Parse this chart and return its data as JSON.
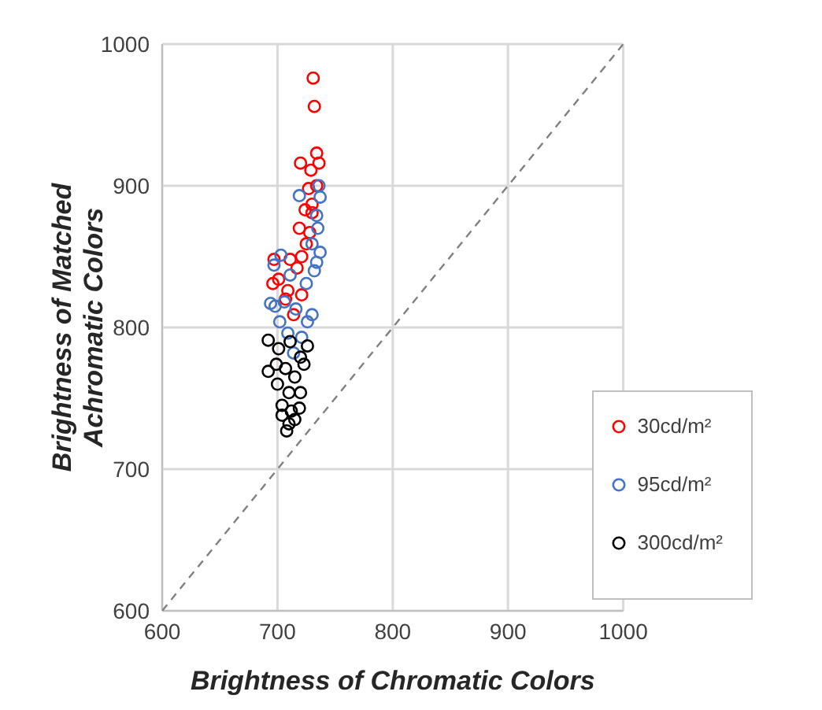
{
  "chart_data": {
    "type": "scatter",
    "xlabel": "Brightness of Chromatic Colors",
    "ylabel": "Brightness of Matched Achromatic Colors",
    "xlim": [
      600,
      1000
    ],
    "ylim": [
      600,
      1000
    ],
    "xticks": [
      600,
      700,
      800,
      900,
      1000
    ],
    "yticks": [
      600,
      700,
      800,
      900,
      1000
    ],
    "grid": true,
    "legend": "right",
    "marker": "circle",
    "series": [
      {
        "name": "30cd/m²",
        "color": "#ff0000",
        "x": [
          731,
          732,
          734,
          736,
          720,
          729,
          727,
          724,
          730,
          719,
          728,
          721,
          711,
          717,
          697,
          701,
          696,
          709,
          707,
          714,
          721,
          730,
          734,
          725
        ],
        "values": [
          976,
          956,
          923,
          916,
          916,
          911,
          898,
          883,
          881,
          870,
          867,
          850,
          848,
          842,
          848,
          834,
          831,
          826,
          820,
          809,
          823,
          887,
          900,
          859
        ]
      },
      {
        "name": "95cd/m²",
        "color": "#4472c4",
        "x": [
          736,
          737,
          719,
          734,
          735,
          730,
          737,
          732,
          711,
          697,
          703,
          725,
          716,
          726,
          698,
          702,
          709,
          721,
          714,
          730,
          694,
          706,
          734
        ],
        "values": [
          900,
          892,
          893,
          879,
          870,
          859,
          853,
          840,
          837,
          844,
          851,
          831,
          813,
          804,
          815,
          804,
          796,
          793,
          782,
          809,
          817,
          818,
          846
        ]
      },
      {
        "name": "300cd/m²",
        "color": "#000000",
        "x": [
          692,
          701,
          711,
          726,
          720,
          699,
          707,
          715,
          723,
          700,
          710,
          720,
          704,
          712,
          710,
          708,
          715,
          704,
          719,
          692
        ],
        "values": [
          791,
          785,
          790,
          787,
          779,
          774,
          771,
          765,
          774,
          760,
          754,
          754,
          745,
          741,
          732,
          727,
          735,
          738,
          743,
          769
        ]
      },
      {
        "type": "line",
        "color": "#808080",
        "line_style": "dashed",
        "marker": "none",
        "x": [
          600,
          1000
        ],
        "values": [
          600,
          1000
        ]
      }
    ]
  }
}
